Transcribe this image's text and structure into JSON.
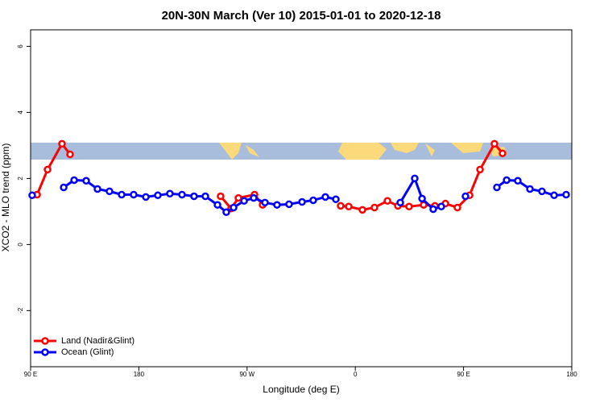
{
  "chart_data": {
    "type": "line",
    "title": "20N-30N March (Ver 10)   2015-01-01 to 2020-12-18",
    "x_label": "Longitude (deg E)",
    "y_label": "XCO2 - MLO trend (ppm)",
    "xlim": [
      90,
      540
    ],
    "ylim": [
      -3.7,
      6.5
    ],
    "xticks": [
      {
        "value": 90,
        "label": "90 E"
      },
      180,
      {
        "value": 270,
        "label": "90 W"
      },
      {
        "value": 360,
        "label": "0"
      },
      {
        "value": 450,
        "label": "90 E"
      },
      {
        "value": 540,
        "label": "180"
      }
    ],
    "yticks": [
      -2,
      0,
      2,
      4,
      6
    ],
    "legend_position": "bottom-left",
    "series": [
      {
        "name": "Land (Nadir&Glint)",
        "color": "#ff0000",
        "x": [
          95.4,
          104.1,
          116.1,
          122.8,
          null,
          248.0,
          256.7,
          262.8,
          276.2,
          282.9,
          null,
          347.8,
          354.5,
          365.9,
          375.9,
          386.7,
          395.4,
          404.7,
          416.8,
          426.2,
          434.9,
          444.9,
          455.0,
          463.7,
          475.7,
          482.4
        ],
        "values": [
          1.51,
          2.27,
          3.05,
          2.73,
          null,
          1.46,
          1.09,
          1.41,
          1.51,
          1.2,
          null,
          1.17,
          1.15,
          1.05,
          1.12,
          1.32,
          1.17,
          1.15,
          1.2,
          1.17,
          1.24,
          1.12,
          1.49,
          2.27,
          3.05,
          2.76
        ]
      },
      {
        "name": "Ocean (Glint)",
        "color": "#0000ff",
        "x": [
          91.3,
          null,
          117.5,
          126.2,
          136.2,
          145.6,
          155.6,
          165.7,
          175.7,
          185.8,
          195.8,
          205.8,
          215.9,
          225.9,
          235.3,
          245.4,
          252.7,
          258.8,
          267.5,
          275.5,
          284.9,
          294.9,
          304.9,
          315.7,
          325.0,
          335.1,
          343.8,
          null,
          397.4,
          409.4,
          415.5,
          424.8,
          431.5,
          null,
          451.6,
          null,
          477.7,
          485.8,
          495.1,
          505.2,
          515.2,
          525.3,
          535.3
        ],
        "values": [
          1.49,
          null,
          1.73,
          1.95,
          1.93,
          1.68,
          1.61,
          1.51,
          1.51,
          1.44,
          1.49,
          1.54,
          1.51,
          1.46,
          1.46,
          1.2,
          0.98,
          1.12,
          1.32,
          1.41,
          1.27,
          1.2,
          1.22,
          1.29,
          1.34,
          1.44,
          1.37,
          null,
          1.27,
          2.0,
          1.39,
          1.07,
          1.15,
          null,
          1.46,
          null,
          1.73,
          1.95,
          1.93,
          1.68,
          1.61,
          1.49,
          1.51
        ]
      }
    ]
  }
}
